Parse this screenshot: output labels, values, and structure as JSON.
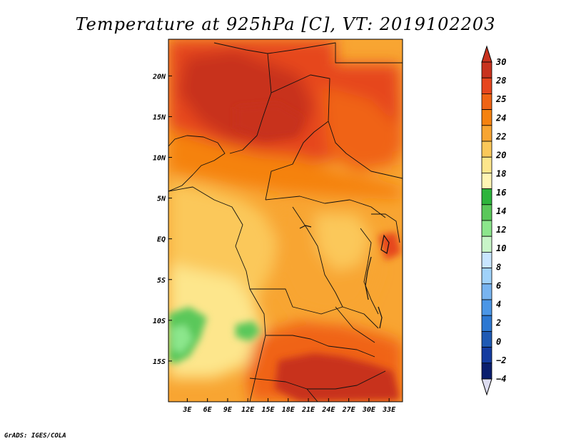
{
  "chart_data": {
    "type": "heatmap",
    "title": "Temperature at 925hPa [C], VT: 2019102203",
    "footer": "GrADS: IGES/COLA",
    "x_ticks": [
      "3E",
      "6E",
      "9E",
      "12E",
      "15E",
      "18E",
      "21E",
      "24E",
      "27E",
      "30E",
      "33E"
    ],
    "y_ticks": [
      "20N",
      "15N",
      "10N",
      "5N",
      "EQ",
      "5S",
      "10S",
      "15S"
    ],
    "x_range_deg": [
      0.2,
      35
    ],
    "y_range_deg": [
      -20,
      24.5
    ],
    "colorbar": {
      "levels": [
        "30",
        "28",
        "25",
        "24",
        "22",
        "20",
        "18",
        "16",
        "14",
        "12",
        "10",
        "8",
        "6",
        "4",
        "2",
        "0",
        "−2",
        "−4"
      ],
      "colors": [
        "#c8321e",
        "#e6461e",
        "#f06414",
        "#f5820f",
        "#f8a532",
        "#fbc85a",
        "#fde68c",
        "#fff5b4",
        "#2db43c",
        "#5ac85a",
        "#8ce68c",
        "#c8f5c8",
        "#c8e6ff",
        "#a0d2fa",
        "#78b4f0",
        "#4b96e6",
        "#2d78d2",
        "#1e5ab4",
        "#143ca0",
        "#0a1e6e"
      ],
      "over_color": "#c8321e",
      "under_color": "#dcdcf0"
    },
    "field_regions": [
      {
        "name": "background",
        "value": 23
      },
      {
        "name": "sahara-north-west",
        "value": 28
      },
      {
        "name": "chad-niger-core",
        "value": 29
      },
      {
        "name": "sudan-east",
        "value": 27
      },
      {
        "name": "sahel-west",
        "value": 25
      },
      {
        "name": "gulf-coast",
        "value": 21
      },
      {
        "name": "southern-atlantic",
        "value": 20
      },
      {
        "name": "drc-central",
        "value": 23
      },
      {
        "name": "east-highlands",
        "value": 21
      },
      {
        "name": "angola-cool-patch",
        "value": 15
      },
      {
        "name": "southern-hot",
        "value": 27
      },
      {
        "name": "southern-core",
        "value": 29
      }
    ]
  }
}
